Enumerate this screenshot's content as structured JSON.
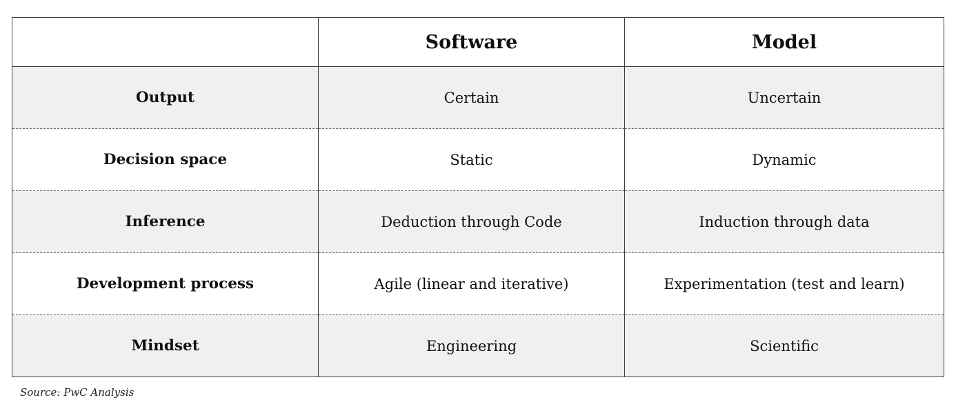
{
  "table": {
    "headers": [
      "",
      "Software",
      "Model"
    ],
    "rows": [
      {
        "label": "Output",
        "software": "Certain",
        "model": "Uncertain"
      },
      {
        "label": "Decision space",
        "software": "Static",
        "model": "Dynamic"
      },
      {
        "label": "Inference",
        "software": "Deduction through Code",
        "model": "Induction through data"
      },
      {
        "label": "Development process",
        "software": "Agile (linear and iterative)",
        "model": "Experimentation (test and learn)"
      },
      {
        "label": "Mindset",
        "software": "Engineering",
        "model": "Scientific"
      }
    ]
  },
  "source": "Source: PwC Analysis",
  "colors": {
    "shaded_row": "#f0f0f0",
    "plain_row": "#ffffff",
    "border": "#3a3a3a"
  }
}
